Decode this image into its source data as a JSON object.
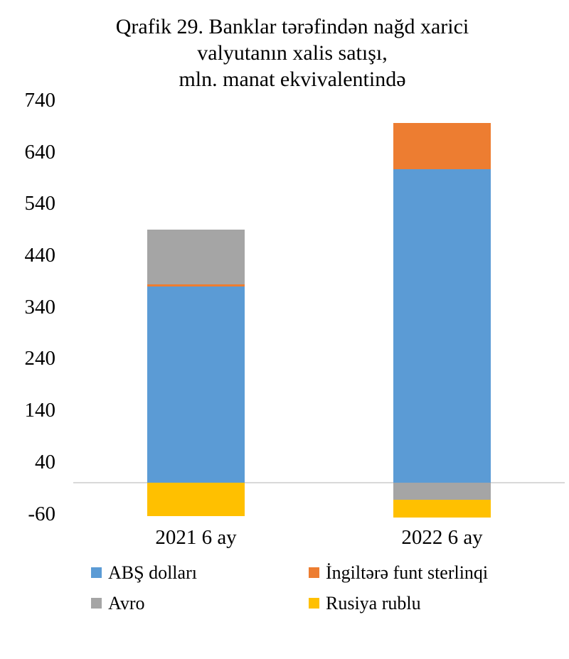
{
  "title": {
    "line1": "Qrafik 29. Banklar tərəfindən nağd xarici",
    "line2": "valyutanın xalis satışı,",
    "line3": "mln. manat ekvivalentində"
  },
  "chart_data": {
    "type": "bar",
    "stacked": true,
    "title": "Qrafik 29. Banklar tərəfindən nağd xarici valyutanın xalis satışı, mln. manat ekvivalentində",
    "categories": [
      "2021 6 ay",
      "2022 6 ay"
    ],
    "series": [
      {
        "name": "ABŞ dolları",
        "color": "#5B9BD5",
        "values": [
          380,
          606
        ]
      },
      {
        "name": "İngiltərə funt sterlinqi",
        "color": "#ED7D31",
        "values": [
          4,
          90
        ]
      },
      {
        "name": "Avro",
        "color": "#A5A5A5",
        "values": [
          106,
          -33
        ]
      },
      {
        "name": "Rusiya rublu",
        "color": "#FFC000",
        "values": [
          -65,
          -34
        ]
      }
    ],
    "y_ticks": [
      740,
      640,
      540,
      440,
      340,
      240,
      140,
      40,
      -60
    ],
    "ylim": [
      -100,
      740
    ],
    "grid": false,
    "legend_position": "bottom",
    "axis_line_color": "#D9D9D9",
    "text_color": "#000000",
    "background": "#FFFFFF"
  }
}
